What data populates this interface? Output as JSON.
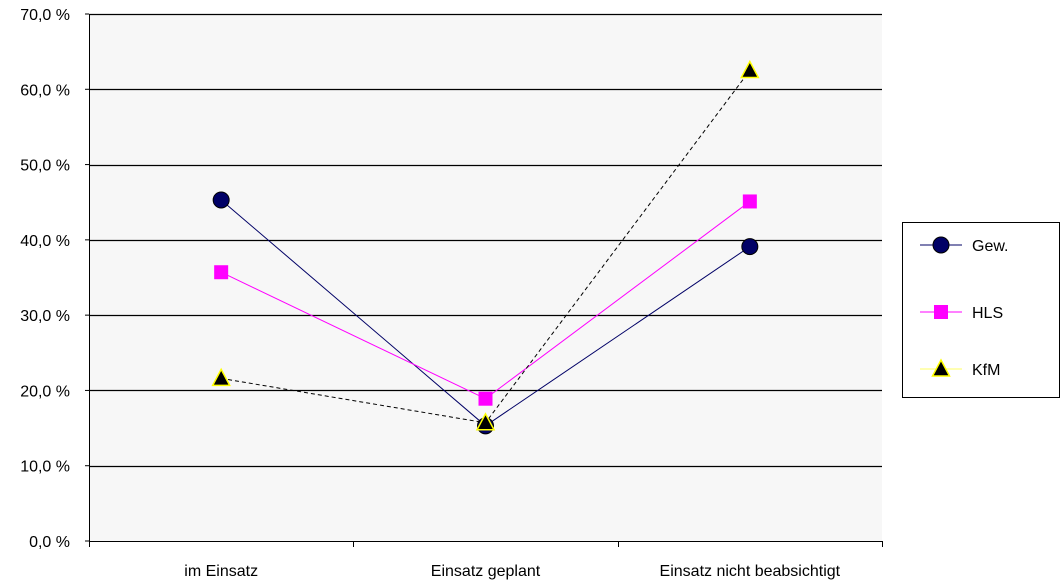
{
  "chart_data": {
    "type": "line",
    "categories": [
      "im Einsatz",
      "Einsatz geplant",
      "Einsatz nicht beabsichtigt"
    ],
    "ylim": [
      0,
      70
    ],
    "yticks": [
      "0,0 %",
      "10,0 %",
      "20,0 %",
      "30,0 %",
      "40,0 %",
      "50,0 %",
      "60,0 %",
      "70,0 %"
    ],
    "ytick_values": [
      0,
      10,
      20,
      30,
      40,
      50,
      60,
      70
    ],
    "grid": true,
    "plot_background": "#f7f7f7",
    "legend_position": "right",
    "series": [
      {
        "name": "Gew.",
        "values": [
          45.3,
          15.3,
          39.1
        ],
        "color": "#000066",
        "marker": "circle",
        "line_style": "solid"
      },
      {
        "name": "HLS",
        "values": [
          35.7,
          18.9,
          45.1
        ],
        "color": "#ff00ff",
        "marker": "square",
        "line_style": "solid"
      },
      {
        "name": "KfM",
        "values": [
          21.6,
          15.7,
          62.5
        ],
        "color": "#000000",
        "marker_fill": "#000000",
        "marker_outline": "#ffff00",
        "marker": "triangle",
        "line_style": "dashed"
      }
    ]
  }
}
